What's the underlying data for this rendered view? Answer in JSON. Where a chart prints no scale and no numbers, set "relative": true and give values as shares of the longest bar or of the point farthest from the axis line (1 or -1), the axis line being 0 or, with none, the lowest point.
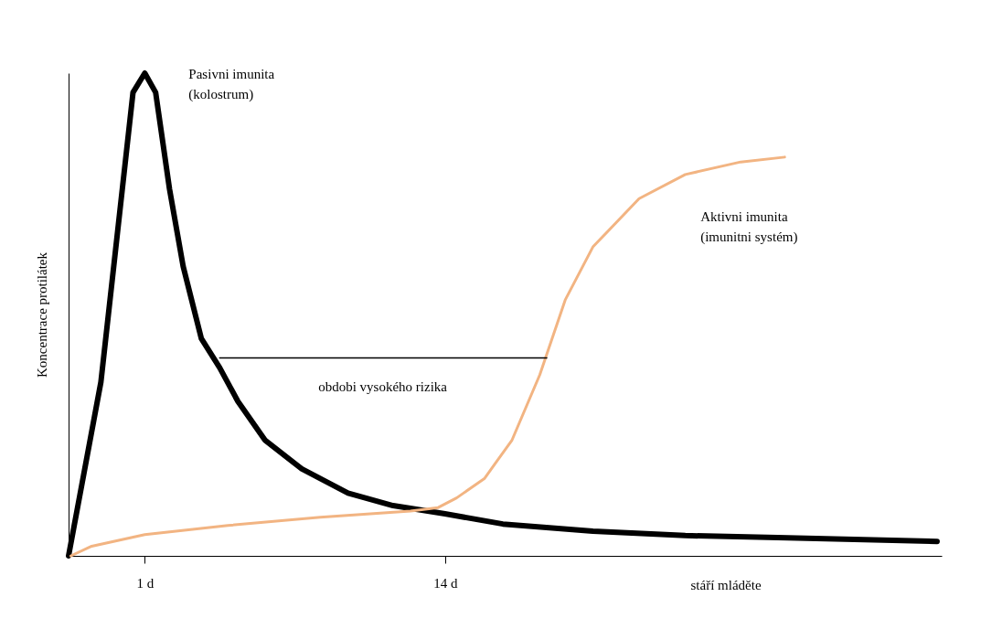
{
  "chart_data": {
    "type": "line",
    "relative": true,
    "xlabel": "stáří mláděte",
    "ylabel": "Koncentrace protilátek",
    "xlim": [
      -2.3,
      35.5
    ],
    "xticks": [
      {
        "value": 1,
        "label": "1 d"
      },
      {
        "value": 14,
        "label": "14 d"
      }
    ],
    "tick_labels": "x",
    "series": [
      {
        "name": "Pasivni imunita\n(kolostrum)",
        "color": "#000000",
        "x": [
          -2.3,
          -0.9,
          0.49,
          1,
          1.47,
          2.07,
          2.66,
          3.45,
          4.24,
          5.03,
          6.2,
          7.8,
          9.8,
          11.75,
          14,
          16.5,
          20.4,
          24.4,
          28.4,
          35.3
        ],
        "values": [
          0,
          0.36,
          0.96,
          1,
          0.96,
          0.76,
          0.6,
          0.45,
          0.39,
          0.32,
          0.24,
          0.18,
          0.13,
          0.104,
          0.087,
          0.066,
          0.051,
          0.042,
          0.038,
          0.03
        ]
      },
      {
        "name": "Aktivni imunita\n(imunitni systém)",
        "color": "#f2b482",
        "x": [
          -2.2,
          -1.3,
          1,
          4.6,
          8.6,
          12.5,
          13.7,
          14.5,
          15.7,
          16.9,
          18.1,
          19.2,
          20.4,
          22.4,
          24.4,
          26.8,
          28.7
        ],
        "values": [
          0,
          0.02,
          0.044,
          0.063,
          0.08,
          0.093,
          0.1,
          0.12,
          0.16,
          0.24,
          0.375,
          0.53,
          0.64,
          0.74,
          0.79,
          0.816,
          0.826
        ]
      },
      {
        "color": "#000000",
        "x": [
          4.24,
          18.4
        ],
        "values": [
          0.41,
          0.41
        ]
      }
    ],
    "annotations": [
      {
        "text": "obdobi vysokého rizika",
        "x": 11.3,
        "y": 0.41
      }
    ]
  }
}
